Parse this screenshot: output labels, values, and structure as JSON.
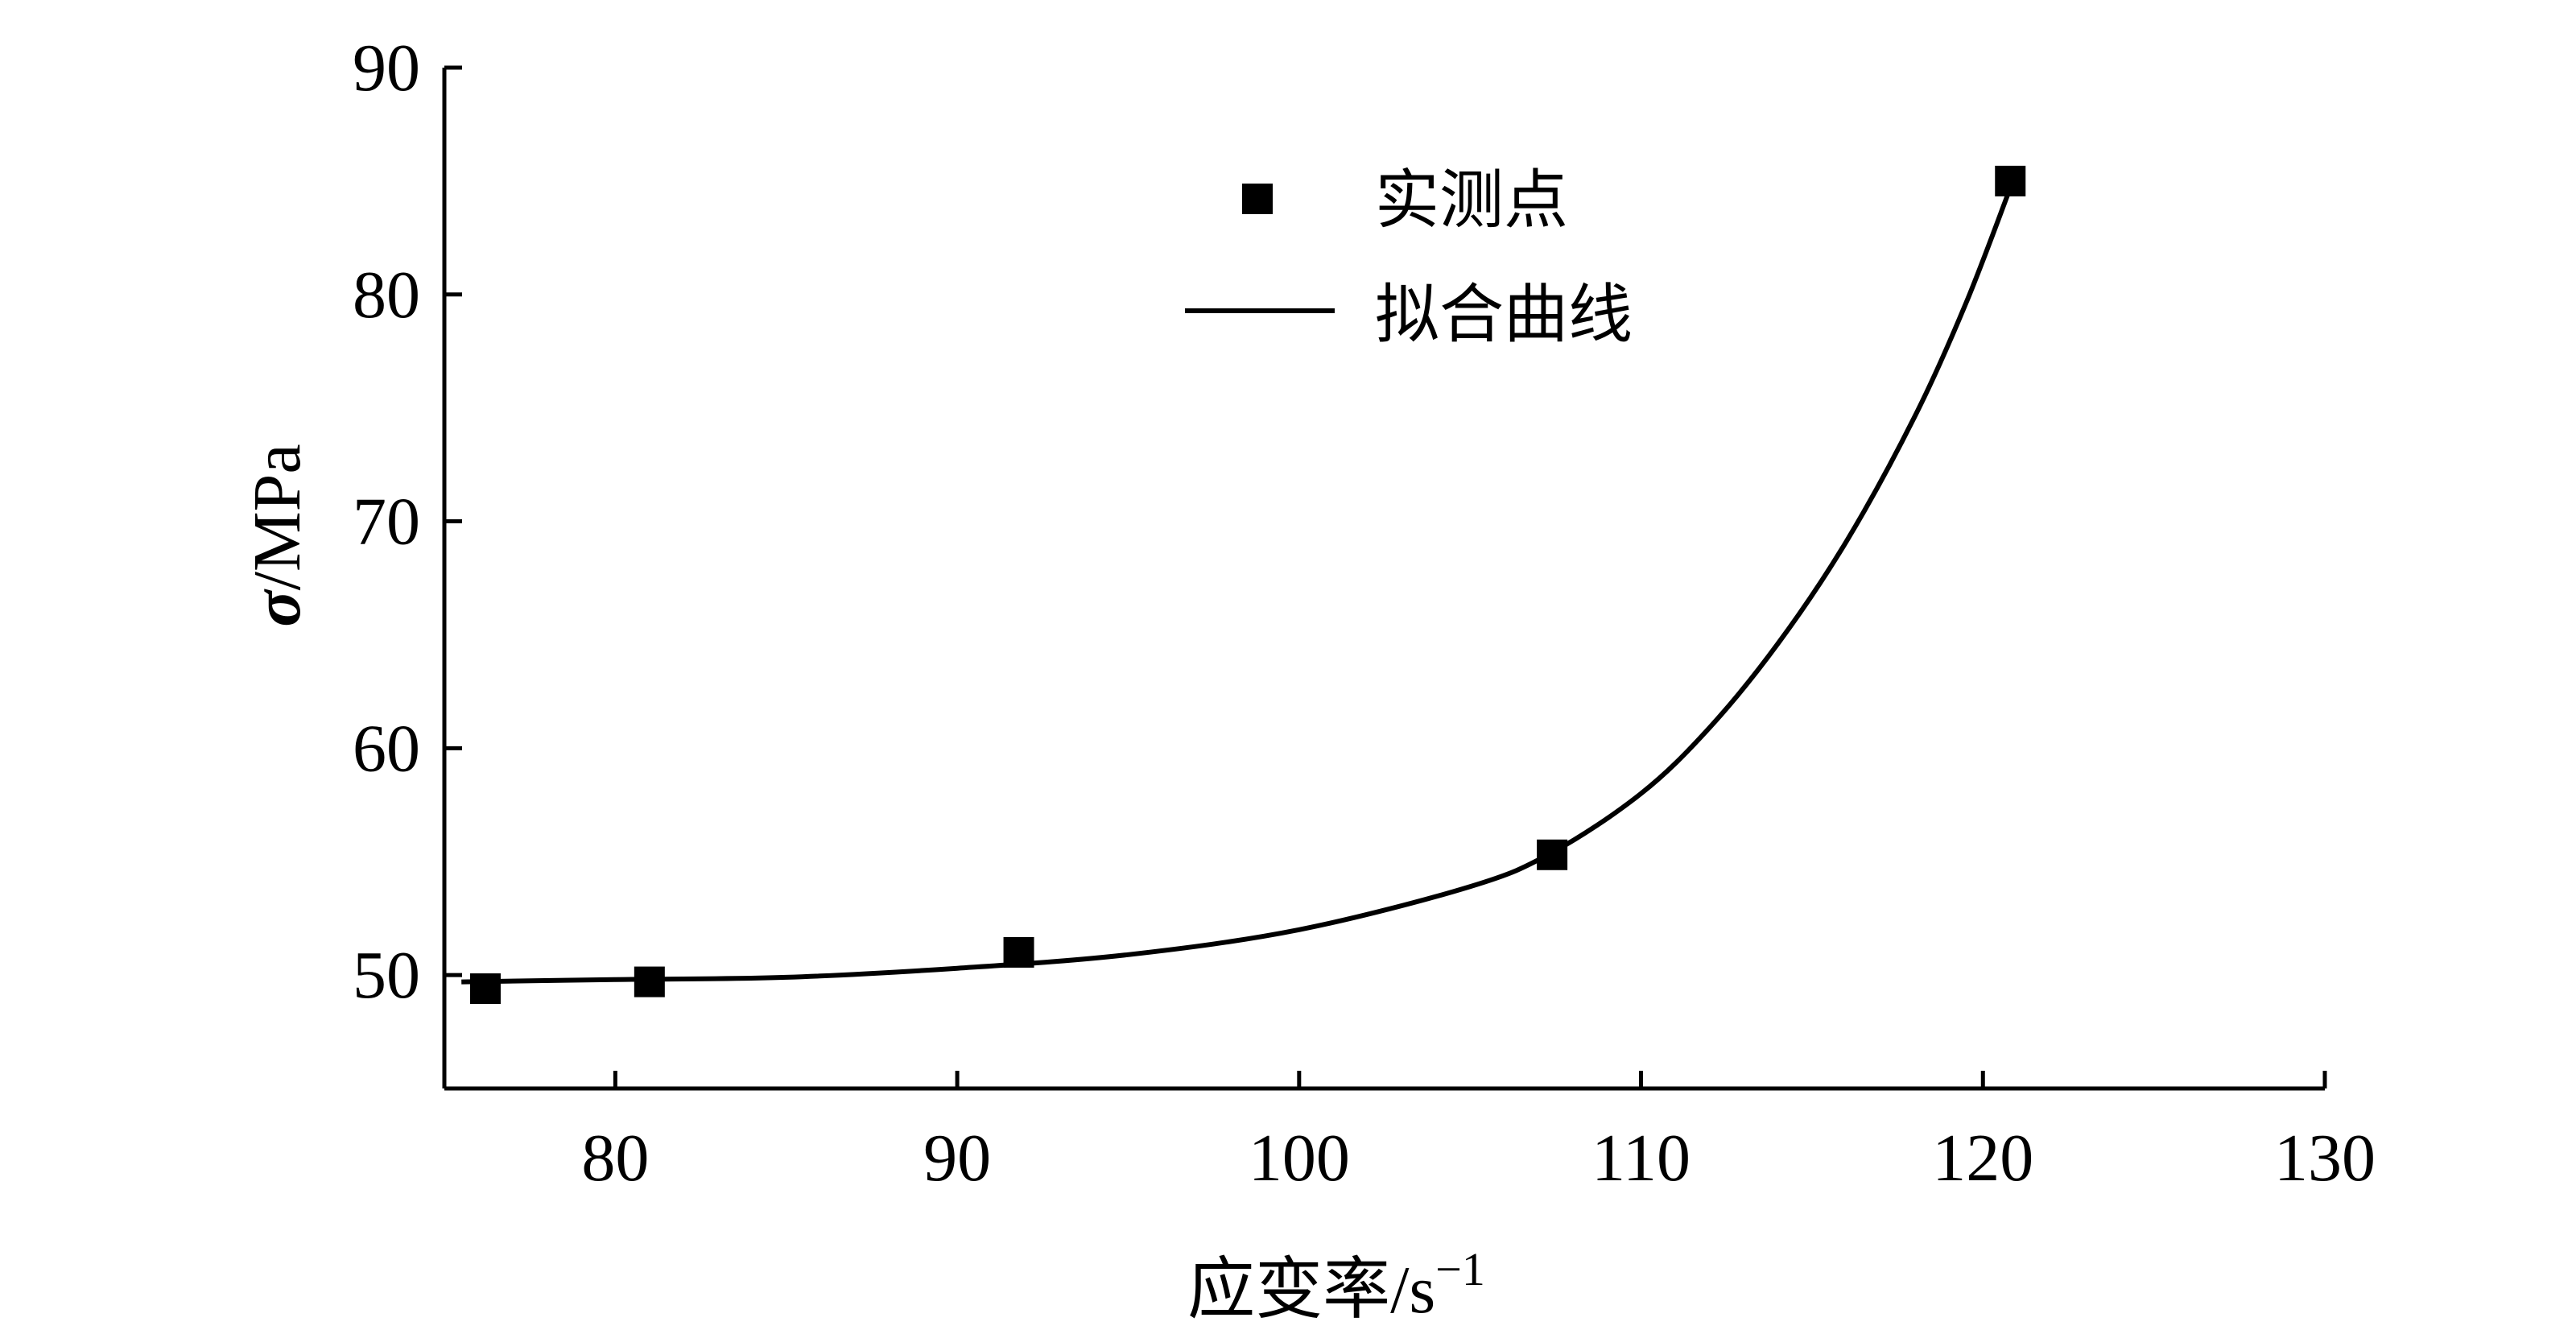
{
  "chart_data": {
    "type": "scatter",
    "title": "",
    "xlabel": "应变率/s",
    "xlabel_superscript": "−1",
    "ylabel_symbol": "σ",
    "ylabel_unit": "/MPa",
    "xlim": [
      75,
      130
    ],
    "ylim": [
      45,
      90
    ],
    "xticks": [
      80,
      90,
      100,
      110,
      120,
      130
    ],
    "yticks": [
      50,
      60,
      70,
      80,
      90
    ],
    "grid": false,
    "legend_position": "top-center",
    "series": [
      {
        "name": "实测点",
        "kind": "markers",
        "marker": "square",
        "points": [
          {
            "x": 76.2,
            "y": 49.4
          },
          {
            "x": 81.0,
            "y": 49.7
          },
          {
            "x": 91.8,
            "y": 51.0
          },
          {
            "x": 107.4,
            "y": 55.3
          },
          {
            "x": 120.8,
            "y": 85.0
          }
        ]
      },
      {
        "name": "拟合曲线",
        "kind": "line",
        "points": [
          {
            "x": 75.5,
            "y": 49.7
          },
          {
            "x": 80,
            "y": 49.8
          },
          {
            "x": 85,
            "y": 49.9
          },
          {
            "x": 90,
            "y": 50.3
          },
          {
            "x": 95,
            "y": 50.9
          },
          {
            "x": 100,
            "y": 52.0
          },
          {
            "x": 105,
            "y": 53.9
          },
          {
            "x": 107.4,
            "y": 55.4
          },
          {
            "x": 110,
            "y": 58.0
          },
          {
            "x": 112,
            "y": 60.9
          },
          {
            "x": 114,
            "y": 64.6
          },
          {
            "x": 116,
            "y": 69.1
          },
          {
            "x": 118,
            "y": 74.6
          },
          {
            "x": 119.5,
            "y": 79.6
          },
          {
            "x": 120.8,
            "y": 84.7
          }
        ]
      }
    ],
    "colors": {
      "axis": "#000000",
      "marker": "#000000",
      "line": "#000000"
    }
  }
}
